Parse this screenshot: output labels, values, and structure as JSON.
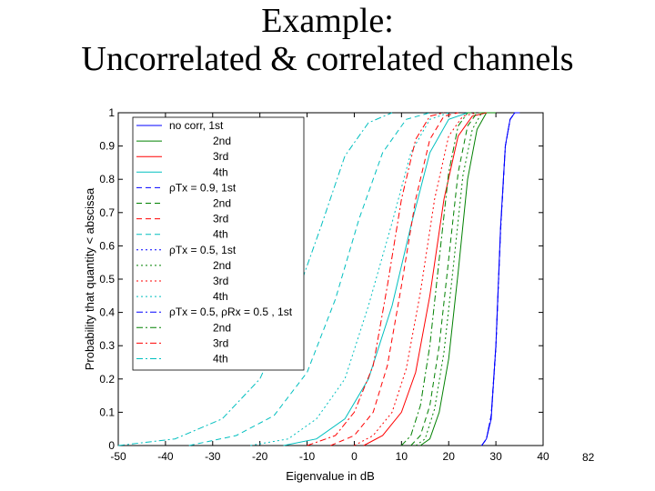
{
  "slide": {
    "title_line1": "Example:",
    "title_line2": "Uncorrelated & correlated channels",
    "page_number": "82"
  },
  "chart_data": {
    "type": "line",
    "xlabel": "Eigenvalue in dB",
    "ylabel": "Probability that quantity < abscissa",
    "xlim": [
      -50,
      40
    ],
    "ylim": [
      0,
      1
    ],
    "xticks": [
      -50,
      -40,
      -30,
      -20,
      -10,
      0,
      10,
      20,
      30,
      40
    ],
    "yticks": [
      0,
      0.1,
      0.2,
      0.3,
      0.4,
      0.5,
      0.6,
      0.7,
      0.8,
      0.9,
      1
    ],
    "grid": false,
    "legend_position": "top-left",
    "colors": {
      "blue": "#0000ff",
      "green": "#008000",
      "red": "#ff0000",
      "cyan": "#00bfbf"
    },
    "legend": [
      {
        "label": "no corr, 1st",
        "color": "#0000ff",
        "style": "solid"
      },
      {
        "label": "2nd",
        "color": "#008000",
        "style": "solid"
      },
      {
        "label": "3rd",
        "color": "#ff0000",
        "style": "solid"
      },
      {
        "label": "4th",
        "color": "#00bfbf",
        "style": "solid"
      },
      {
        "label": "ρTx = 0.9, 1st",
        "color": "#0000ff",
        "style": "dashed"
      },
      {
        "label": "2nd",
        "color": "#008000",
        "style": "dashed"
      },
      {
        "label": "3rd",
        "color": "#ff0000",
        "style": "dashed"
      },
      {
        "label": "4th",
        "color": "#00bfbf",
        "style": "dashed"
      },
      {
        "label": "ρTx = 0.5, 1st",
        "color": "#0000ff",
        "style": "dotted"
      },
      {
        "label": "2nd",
        "color": "#008000",
        "style": "dotted"
      },
      {
        "label": "3rd",
        "color": "#ff0000",
        "style": "dotted"
      },
      {
        "label": "4th",
        "color": "#00bfbf",
        "style": "dotted"
      },
      {
        "label": "ρTx = 0.5, ρRx = 0.5 , 1st",
        "color": "#0000ff",
        "style": "dashdot"
      },
      {
        "label": "2nd",
        "color": "#008000",
        "style": "dashdot"
      },
      {
        "label": "3rd",
        "color": "#ff0000",
        "style": "dashdot"
      },
      {
        "label": "4th",
        "color": "#00bfbf",
        "style": "dashdot"
      }
    ],
    "series": [
      {
        "label_ref": 0,
        "color": "#0000ff",
        "style": "solid",
        "x": [
          27,
          28,
          29,
          30,
          31,
          32,
          33,
          34,
          35
        ],
        "y": [
          0,
          0.02,
          0.08,
          0.3,
          0.66,
          0.9,
          0.98,
          1,
          1
        ]
      },
      {
        "label_ref": 1,
        "color": "#008000",
        "style": "solid",
        "x": [
          14,
          16,
          18,
          20,
          22,
          24,
          26,
          28,
          30
        ],
        "y": [
          0,
          0.02,
          0.1,
          0.26,
          0.52,
          0.8,
          0.95,
          1,
          1
        ]
      },
      {
        "label_ref": 2,
        "color": "#ff0000",
        "style": "solid",
        "x": [
          2,
          6,
          10,
          13,
          16,
          19,
          22,
          25,
          28
        ],
        "y": [
          0,
          0.03,
          0.1,
          0.22,
          0.45,
          0.74,
          0.93,
          0.99,
          1
        ]
      },
      {
        "label_ref": 3,
        "color": "#00bfbf",
        "style": "solid",
        "x": [
          -15,
          -8,
          -2,
          3,
          8,
          12,
          16,
          20,
          24
        ],
        "y": [
          0,
          0.02,
          0.08,
          0.2,
          0.42,
          0.66,
          0.88,
          0.98,
          1
        ]
      },
      {
        "label_ref": 4,
        "color": "#0000ff",
        "style": "dashed",
        "x": [
          27,
          28,
          29,
          30,
          31,
          32,
          33,
          34,
          35
        ],
        "y": [
          0,
          0.02,
          0.09,
          0.3,
          0.65,
          0.9,
          0.98,
          1,
          1
        ]
      },
      {
        "label_ref": 5,
        "color": "#008000",
        "style": "dashed",
        "x": [
          12,
          14,
          16,
          18,
          20,
          22,
          24,
          26,
          28
        ],
        "y": [
          0,
          0.03,
          0.12,
          0.3,
          0.56,
          0.82,
          0.96,
          1,
          1
        ]
      },
      {
        "label_ref": 6,
        "color": "#ff0000",
        "style": "dashed",
        "x": [
          -5,
          0,
          4,
          7,
          10,
          13,
          16,
          19,
          22
        ],
        "y": [
          0,
          0.03,
          0.1,
          0.24,
          0.48,
          0.74,
          0.92,
          0.99,
          1
        ]
      },
      {
        "label_ref": 7,
        "color": "#00bfbf",
        "style": "dashed",
        "x": [
          -35,
          -25,
          -17,
          -10,
          -4,
          1,
          6,
          11,
          16
        ],
        "y": [
          0,
          0.03,
          0.09,
          0.22,
          0.44,
          0.68,
          0.88,
          0.98,
          1
        ]
      },
      {
        "label_ref": 8,
        "color": "#0000ff",
        "style": "dotted",
        "x": [
          27,
          28,
          29,
          30,
          31,
          32,
          33,
          34,
          35
        ],
        "y": [
          0,
          0.02,
          0.08,
          0.29,
          0.65,
          0.9,
          0.98,
          1,
          1
        ]
      },
      {
        "label_ref": 9,
        "color": "#008000",
        "style": "dotted",
        "x": [
          13,
          15,
          17,
          19,
          21,
          23,
          25,
          27,
          29
        ],
        "y": [
          0,
          0.02,
          0.11,
          0.28,
          0.54,
          0.81,
          0.95,
          1,
          1
        ]
      },
      {
        "label_ref": 10,
        "color": "#ff0000",
        "style": "dotted",
        "x": [
          0,
          4,
          8,
          11,
          14,
          17,
          20,
          23,
          26
        ],
        "y": [
          0,
          0.03,
          0.1,
          0.23,
          0.46,
          0.74,
          0.93,
          0.99,
          1
        ]
      },
      {
        "label_ref": 11,
        "color": "#00bfbf",
        "style": "dotted",
        "x": [
          -22,
          -14,
          -8,
          -2,
          3,
          8,
          12,
          16,
          20
        ],
        "y": [
          0,
          0.02,
          0.08,
          0.2,
          0.42,
          0.67,
          0.88,
          0.98,
          1
        ]
      },
      {
        "label_ref": 12,
        "color": "#0000ff",
        "style": "dashdot",
        "x": [
          27,
          28,
          29,
          30,
          31,
          32,
          33,
          34,
          35
        ],
        "y": [
          0,
          0.02,
          0.09,
          0.3,
          0.65,
          0.9,
          0.98,
          1,
          1
        ]
      },
      {
        "label_ref": 13,
        "color": "#008000",
        "style": "dashdot",
        "x": [
          10,
          12,
          14,
          16,
          18,
          20,
          22,
          24,
          26
        ],
        "y": [
          0,
          0.03,
          0.12,
          0.3,
          0.56,
          0.82,
          0.96,
          1,
          1
        ]
      },
      {
        "label_ref": 14,
        "color": "#ff0000",
        "style": "dashdot",
        "x": [
          -10,
          -4,
          0,
          4,
          7,
          10,
          13,
          16,
          19
        ],
        "y": [
          0,
          0.03,
          0.1,
          0.24,
          0.48,
          0.74,
          0.92,
          0.99,
          1
        ]
      },
      {
        "label_ref": 15,
        "color": "#00bfbf",
        "style": "dashdot",
        "x": [
          -50,
          -38,
          -28,
          -20,
          -13,
          -7,
          -2,
          3,
          8
        ],
        "y": [
          0,
          0.02,
          0.08,
          0.2,
          0.42,
          0.66,
          0.87,
          0.97,
          1
        ]
      }
    ]
  }
}
